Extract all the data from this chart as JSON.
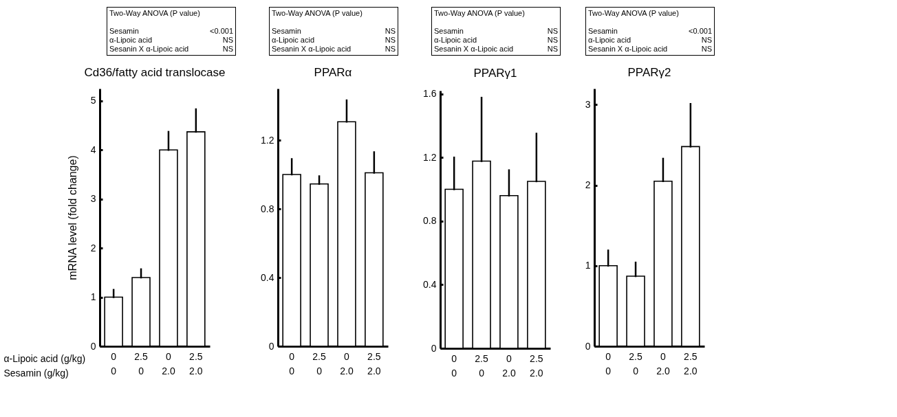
{
  "chart_data": [
    {
      "type": "bar",
      "title": "Cd36/fatty acid translocase",
      "ylabel": "mRNA level (fold change)",
      "xlabel": "α-Lipoic acid (g/kg)\nSesamin (g/kg)",
      "categories": [
        "0\n0",
        "2.5\n0",
        "0\n2.0",
        "2.5\n2.0"
      ],
      "values": [
        1.0,
        1.4,
        4.0,
        4.37
      ],
      "errors": [
        [
          1.0,
          1.15
        ],
        [
          1.4,
          1.57
        ],
        [
          4.0,
          4.37
        ],
        [
          4.37,
          4.83
        ]
      ],
      "color": "#ffffff",
      "ylim": [
        0,
        5.25
      ],
      "yticks": [
        0,
        1,
        2,
        3,
        4,
        5
      ],
      "annotations": [
        "Two-Way ANOVA (P value)",
        "Sesamin",
        "<0.001",
        "α-Lipoic acid",
        "NS",
        "Sesanin X α-Lipoic acid",
        "NS"
      ]
    },
    {
      "type": "bar",
      "title": "PPARα",
      "categories": [
        "0\n0",
        "2.5\n0",
        "0\n2.0",
        "2.5\n2.0"
      ],
      "values": [
        1.0,
        0.945,
        1.307,
        1.01
      ],
      "errors": [
        [
          1.0,
          1.09
        ],
        [
          0.945,
          0.99
        ],
        [
          1.307,
          1.432
        ],
        [
          1.01,
          1.13
        ]
      ],
      "color": "#ffffff",
      "ylim": [
        0,
        1.5
      ],
      "yticks": [
        0,
        0.4,
        0.8,
        1.2
      ],
      "annotations": [
        "Two-Way ANOVA (P value)",
        "Sesamin",
        "NS",
        "α-Lipoic acid",
        "NS",
        "Sesanin X α-Lipoic acid",
        "NS"
      ]
    },
    {
      "type": "bar",
      "title": "PPARγ1",
      "categories": [
        "0\n0",
        "2.5\n0",
        "0\n2.0",
        "2.5\n2.0"
      ],
      "values": [
        1.0,
        1.177,
        0.96,
        1.05
      ],
      "errors": [
        [
          1.0,
          1.2
        ],
        [
          1.177,
          1.576
        ],
        [
          0.96,
          1.12
        ],
        [
          1.05,
          1.35
        ]
      ],
      "color": "#ffffff",
      "ylim": [
        0,
        1.62
      ],
      "yticks": [
        0,
        0.4,
        0.8,
        1.2,
        1.6
      ],
      "annotations": [
        "Two-Way ANOVA (P value)",
        "Sesamin",
        "NS",
        "α-Lipoic acid",
        "NS",
        "Sesanin X α-Lipoic acid",
        "NS"
      ]
    },
    {
      "type": "bar",
      "title": "PPARγ2",
      "categories": [
        "0\n0",
        "2.5\n0",
        "0\n2.0",
        "2.5\n2.0"
      ],
      "values": [
        1.0,
        0.87,
        2.05,
        2.48
      ],
      "errors": [
        [
          1.0,
          1.19
        ],
        [
          0.87,
          1.04
        ],
        [
          2.05,
          2.33
        ],
        [
          2.48,
          3.01
        ]
      ],
      "color": "#ffffff",
      "ylim": [
        0,
        3.2
      ],
      "yticks": [
        0,
        1,
        2,
        3
      ],
      "annotations": [
        "Two-Way ANOVA (P value)",
        "Sesamin",
        "<0.001",
        "α-Lipoic acid",
        "NS",
        "Sesanin X α-Lipoic acid",
        "NS"
      ]
    }
  ]
}
